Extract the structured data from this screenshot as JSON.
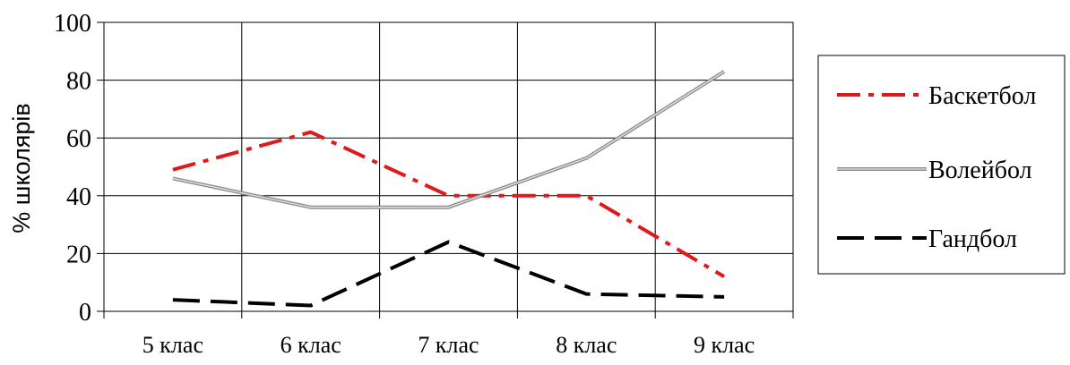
{
  "chart_data": {
    "type": "line",
    "categories": [
      "5 клас",
      "6 клас",
      "7 клас",
      "8 клас",
      "9 клас"
    ],
    "yticks": [
      "0",
      "20",
      "40",
      "60",
      "80",
      "100"
    ],
    "ylabel": "% школярів",
    "xlabel": "",
    "ylim": [
      0,
      100
    ],
    "grid": true,
    "legend_position": "right",
    "series": [
      {
        "name": "Баскетбол",
        "values": [
          49,
          62,
          40,
          40,
          12
        ],
        "color": "#e0191b",
        "style": "dash-dot"
      },
      {
        "name": "Волейбол",
        "values": [
          46,
          36,
          36,
          53,
          83
        ],
        "color": "#999999",
        "style": "double-solid"
      },
      {
        "name": "Гандбол",
        "values": [
          4,
          2,
          24,
          6,
          5
        ],
        "color": "#000000",
        "style": "long-dash"
      }
    ]
  }
}
